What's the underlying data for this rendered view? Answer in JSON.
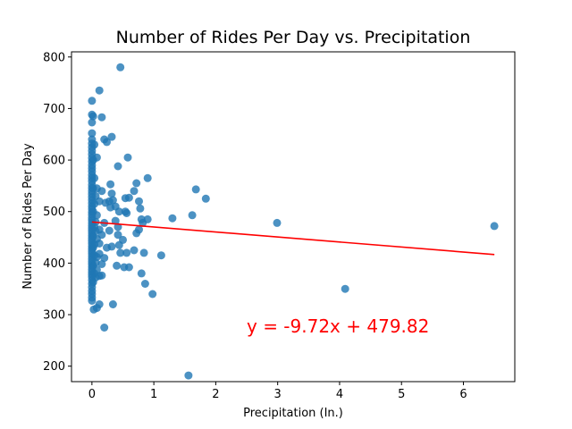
{
  "chart_data": {
    "type": "scatter",
    "title": "Number of Rides Per Day vs. Precipitation",
    "xlabel": "Precipitation (In.)",
    "ylabel": "Number of Rides Per Day",
    "xlim": [
      -0.33,
      6.83
    ],
    "ylim": [
      170,
      810
    ],
    "xticks": [
      0,
      1,
      2,
      3,
      4,
      5,
      6
    ],
    "yticks": [
      200,
      300,
      400,
      500,
      600,
      700,
      800
    ],
    "grid": false,
    "legend": "none",
    "point_color": "#1f77b4",
    "line_color": "#ff0000",
    "regression": {
      "slope": -9.72,
      "intercept": 479.82,
      "x_range": [
        0,
        6.5
      ],
      "label": "y = -9.72x + 479.82"
    },
    "points": [
      [
        0,
        715
      ],
      [
        0,
        688
      ],
      [
        0,
        673
      ],
      [
        0,
        652
      ],
      [
        0,
        640
      ],
      [
        0,
        632
      ],
      [
        0,
        625
      ],
      [
        0,
        618
      ],
      [
        0,
        611
      ],
      [
        0,
        604
      ],
      [
        0,
        597
      ],
      [
        0,
        590
      ],
      [
        0,
        584
      ],
      [
        0,
        578
      ],
      [
        0,
        571
      ],
      [
        0,
        565
      ],
      [
        0,
        559
      ],
      [
        0,
        552
      ],
      [
        0,
        546
      ],
      [
        0,
        540
      ],
      [
        0,
        534
      ],
      [
        0,
        528
      ],
      [
        0,
        522
      ],
      [
        0,
        516
      ],
      [
        0,
        510
      ],
      [
        0,
        505
      ],
      [
        0,
        499
      ],
      [
        0,
        494
      ],
      [
        0,
        488
      ],
      [
        0,
        483
      ],
      [
        0,
        478
      ],
      [
        0,
        473
      ],
      [
        0,
        468
      ],
      [
        0,
        463
      ],
      [
        0,
        458
      ],
      [
        0,
        453
      ],
      [
        0,
        448
      ],
      [
        0,
        443
      ],
      [
        0,
        438
      ],
      [
        0,
        433
      ],
      [
        0,
        428
      ],
      [
        0,
        423
      ],
      [
        0,
        418
      ],
      [
        0,
        413
      ],
      [
        0,
        408
      ],
      [
        0,
        403
      ],
      [
        0,
        398
      ],
      [
        0,
        393
      ],
      [
        0,
        388
      ],
      [
        0,
        383
      ],
      [
        0,
        378
      ],
      [
        0,
        373
      ],
      [
        0,
        367
      ],
      [
        0,
        360
      ],
      [
        0,
        353
      ],
      [
        0,
        346
      ],
      [
        0,
        340
      ],
      [
        0,
        333
      ],
      [
        0,
        327
      ],
      [
        0.02,
        685
      ],
      [
        0.02,
        600
      ],
      [
        0.02,
        545
      ],
      [
        0.02,
        500
      ],
      [
        0.02,
        452
      ],
      [
        0.02,
        430
      ],
      [
        0.02,
        395
      ],
      [
        0.02,
        363
      ],
      [
        0.03,
        310
      ],
      [
        0.04,
        630
      ],
      [
        0.04,
        565
      ],
      [
        0.04,
        515
      ],
      [
        0.04,
        470
      ],
      [
        0.04,
        436
      ],
      [
        0.04,
        415
      ],
      [
        0.04,
        380
      ],
      [
        0.06,
        530
      ],
      [
        0.06,
        480
      ],
      [
        0.06,
        462
      ],
      [
        0.06,
        401
      ],
      [
        0.06,
        372
      ],
      [
        0.08,
        605
      ],
      [
        0.08,
        545
      ],
      [
        0.08,
        493
      ],
      [
        0.08,
        447
      ],
      [
        0.08,
        412
      ],
      [
        0.08,
        387
      ],
      [
        0.08,
        313
      ],
      [
        0.12,
        735
      ],
      [
        0.12,
        520
      ],
      [
        0.12,
        465
      ],
      [
        0.12,
        438
      ],
      [
        0.12,
        418
      ],
      [
        0.12,
        375
      ],
      [
        0.12,
        320
      ],
      [
        0.16,
        683
      ],
      [
        0.16,
        540
      ],
      [
        0.16,
        455
      ],
      [
        0.16,
        398
      ],
      [
        0.16,
        376
      ],
      [
        0.2,
        640
      ],
      [
        0.2,
        478
      ],
      [
        0.2,
        410
      ],
      [
        0.22,
        517
      ],
      [
        0.2,
        275
      ],
      [
        0.24,
        635
      ],
      [
        0.24,
        430
      ],
      [
        0.28,
        520
      ],
      [
        0.28,
        463
      ],
      [
        0.3,
        553
      ],
      [
        0.3,
        508
      ],
      [
        0.32,
        645
      ],
      [
        0.32,
        535
      ],
      [
        0.32,
        432
      ],
      [
        0.34,
        522
      ],
      [
        0.34,
        320
      ],
      [
        0.38,
        510
      ],
      [
        0.38,
        482
      ],
      [
        0.4,
        395
      ],
      [
        0.42,
        588
      ],
      [
        0.42,
        470
      ],
      [
        0.42,
        455
      ],
      [
        0.44,
        500
      ],
      [
        0.44,
        435
      ],
      [
        0.46,
        780
      ],
      [
        0.46,
        420
      ],
      [
        0.5,
        445
      ],
      [
        0.52,
        392
      ],
      [
        0.54,
        526
      ],
      [
        0.54,
        500
      ],
      [
        0.56,
        497
      ],
      [
        0.56,
        420
      ],
      [
        0.58,
        605
      ],
      [
        0.6,
        392
      ],
      [
        0.6,
        527
      ],
      [
        0.68,
        540
      ],
      [
        0.68,
        425
      ],
      [
        0.72,
        555
      ],
      [
        0.72,
        458
      ],
      [
        0.76,
        520
      ],
      [
        0.76,
        465
      ],
      [
        0.78,
        506
      ],
      [
        0.8,
        380
      ],
      [
        0.8,
        485
      ],
      [
        0.82,
        478
      ],
      [
        0.84,
        420
      ],
      [
        0.86,
        360
      ],
      [
        0.9,
        565
      ],
      [
        0.9,
        485
      ],
      [
        0.98,
        340
      ],
      [
        1.12,
        415
      ],
      [
        1.3,
        487
      ],
      [
        1.56,
        182
      ],
      [
        1.62,
        493
      ],
      [
        1.68,
        543
      ],
      [
        1.84,
        525
      ],
      [
        2.99,
        478
      ],
      [
        4.09,
        350
      ],
      [
        6.5,
        472
      ]
    ]
  }
}
